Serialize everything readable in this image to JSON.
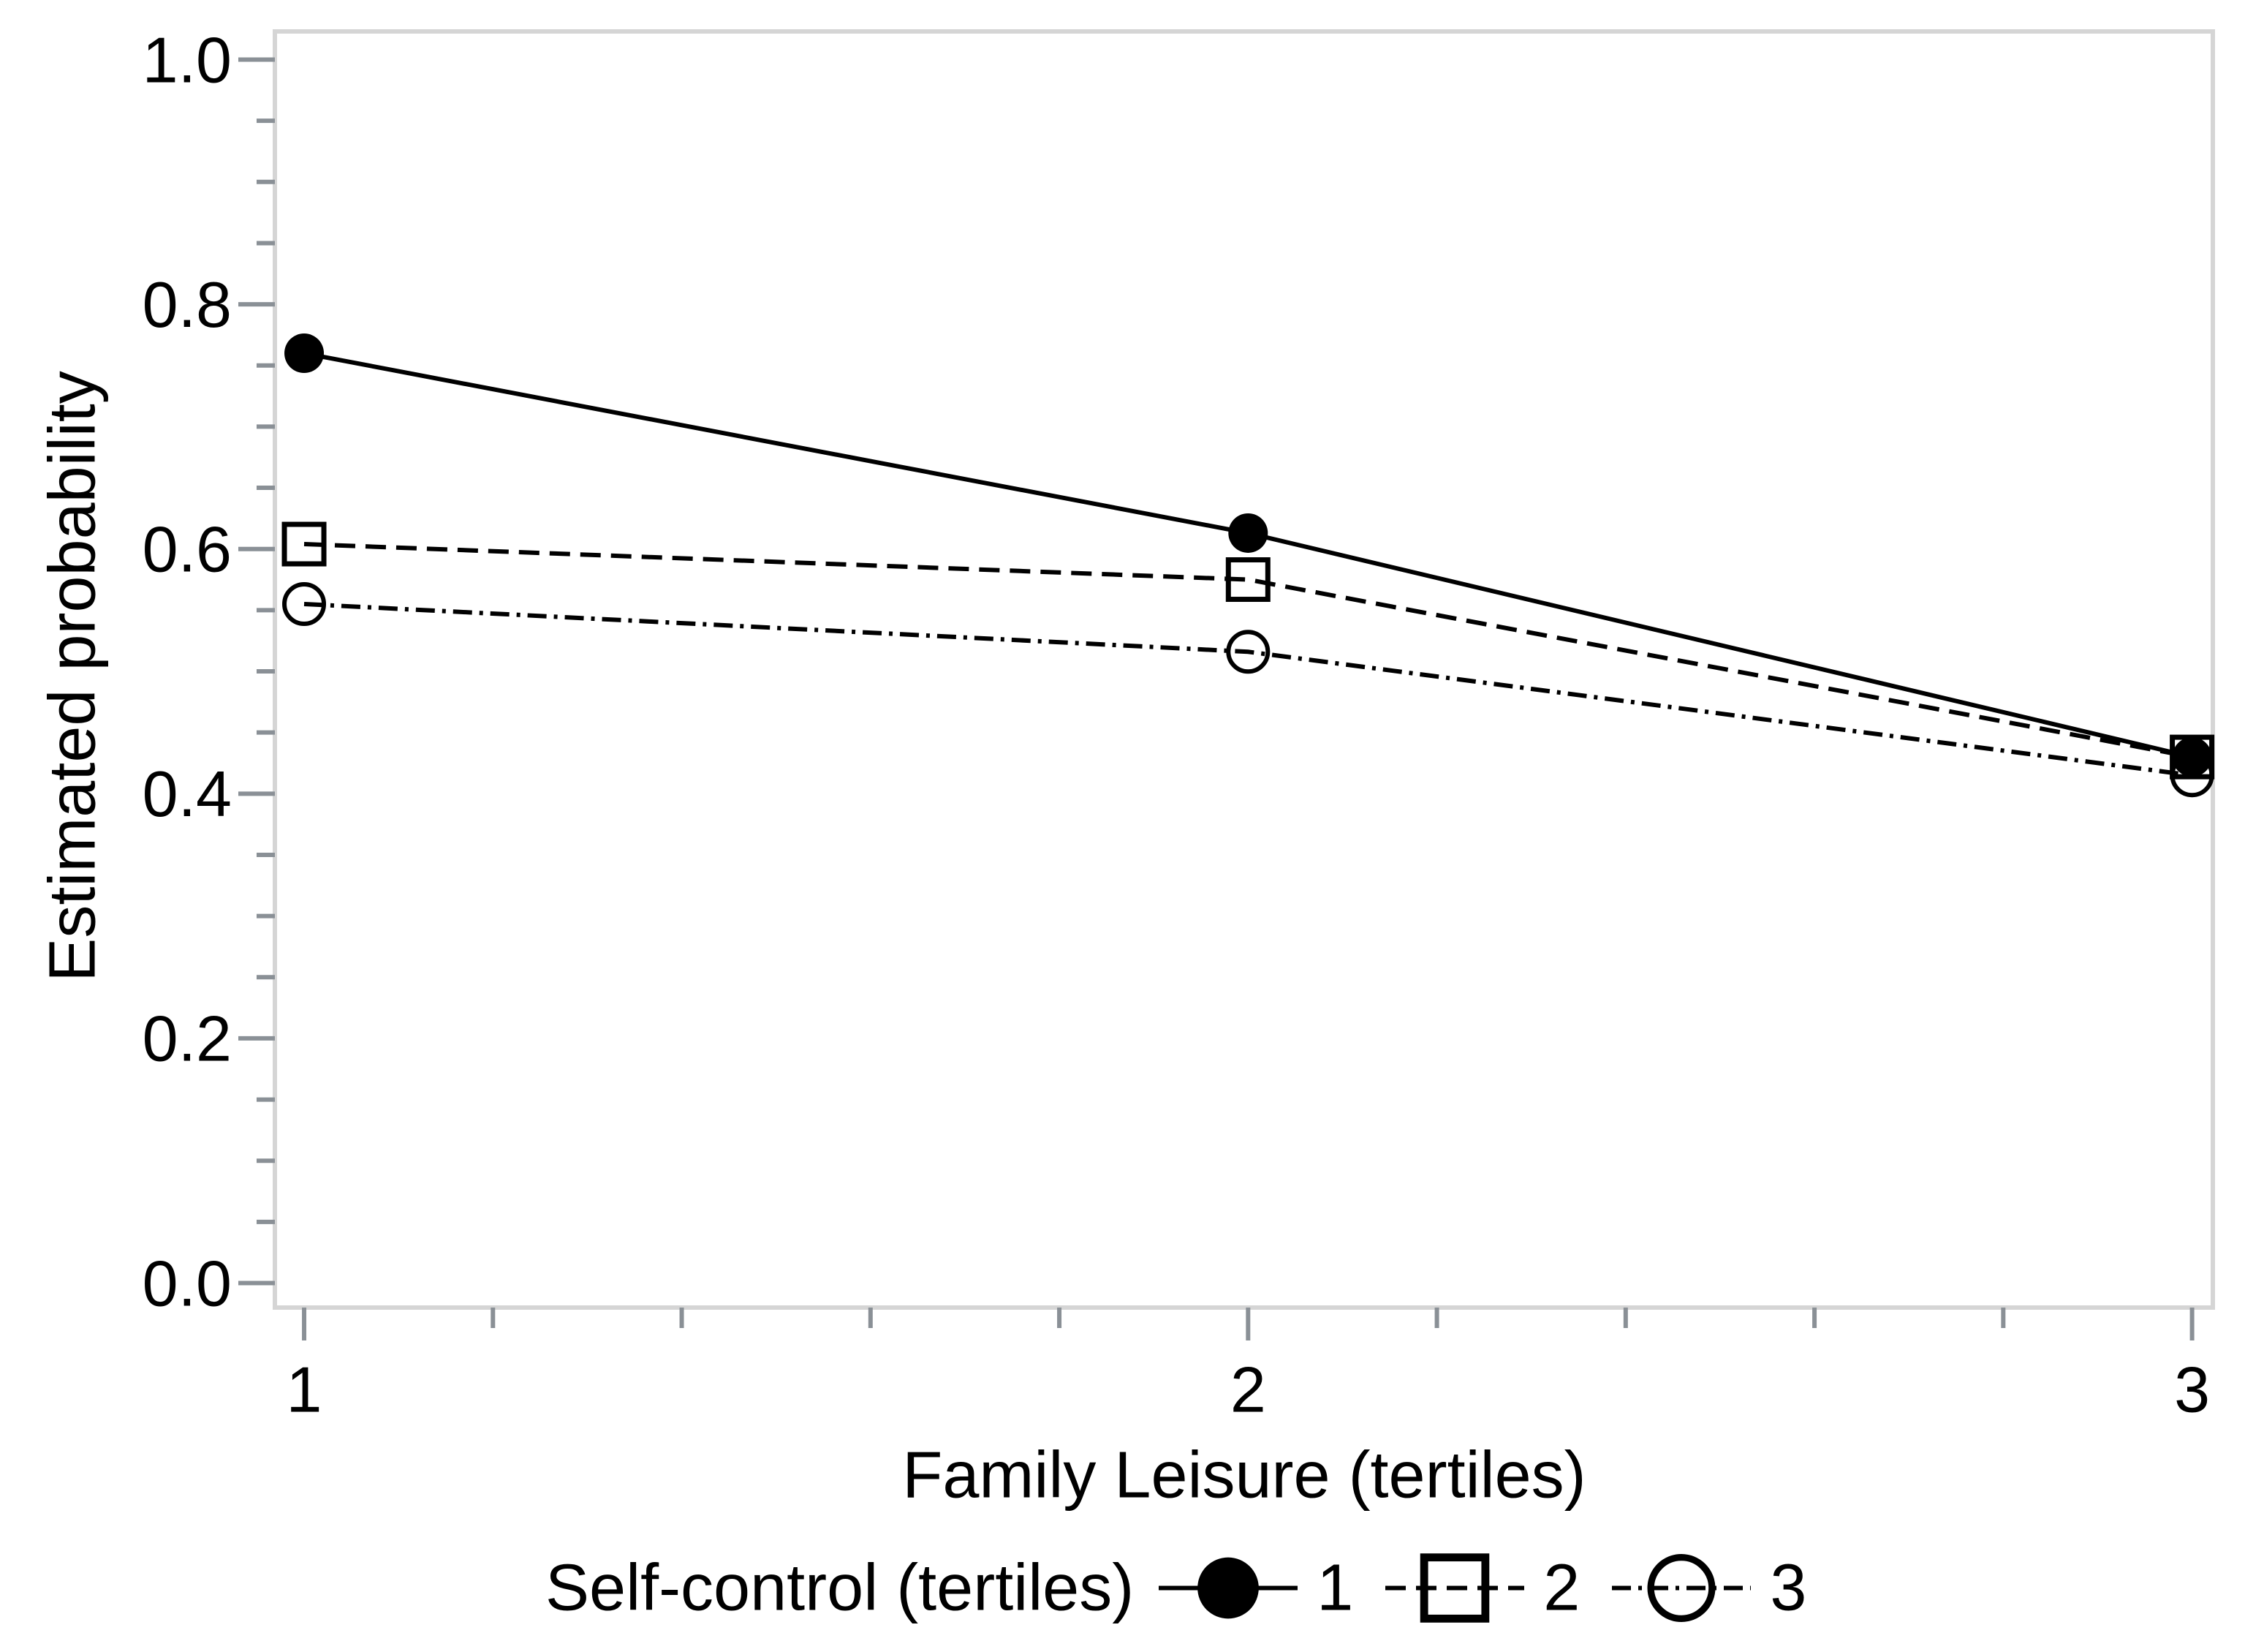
{
  "chart_data": {
    "type": "line",
    "title": "",
    "xlabel": "Family Leisure (tertiles)",
    "ylabel": "Estimated probability",
    "legend_title": "Self-control (tertiles)",
    "legend_position": "bottom",
    "grid": false,
    "x": [
      1,
      2,
      3
    ],
    "series": [
      {
        "name": "1",
        "line": "solid",
        "marker": "filled-circle",
        "values": [
          0.76,
          0.613,
          0.43
        ]
      },
      {
        "name": "2",
        "line": "dashed",
        "marker": "open-square",
        "values": [
          0.604,
          0.575,
          0.43
        ]
      },
      {
        "name": "3",
        "line": "dash-dot",
        "marker": "open-circle",
        "values": [
          0.555,
          0.516,
          0.415
        ]
      }
    ],
    "xlim": [
      0.969,
      3.022
    ],
    "ylim": [
      -0.02,
      1.023
    ],
    "x_ticks_major": [
      1,
      2,
      3
    ],
    "x_tick_labels": [
      "1",
      "2",
      "3"
    ],
    "x_minor_step": 0.2,
    "y_ticks_major": [
      0.0,
      0.2,
      0.4,
      0.6,
      0.8,
      1.0
    ],
    "y_tick_labels": [
      "0.0",
      "0.2",
      "0.4",
      "0.6",
      "0.8",
      "1.0"
    ],
    "y_minor_step": 0.05,
    "colors": {
      "series": "#000000",
      "text": "#000000",
      "tick": "#8a9096",
      "frame": "#d5d5d5",
      "background": "#ffffff"
    }
  }
}
